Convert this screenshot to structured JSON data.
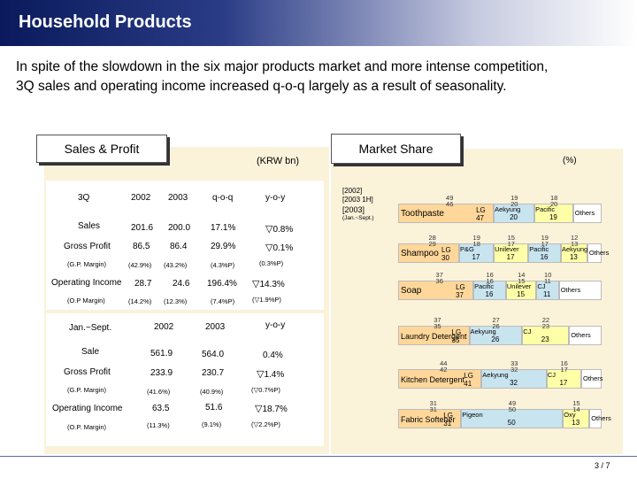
{
  "header": {
    "title": "Household Products"
  },
  "subtitle": {
    "line1": "In spite of the slowdown in the six major products market and more intense competition,",
    "line2": "3Q sales and operating income increased q-o-q largely as a result of seasonality."
  },
  "sales_profit": {
    "tab_label": "Sales & Profit",
    "unit": "(KRW bn)",
    "quarter_table": {
      "headers": [
        "3Q",
        "2002",
        "2003",
        "q-o-q",
        "y-o-y"
      ],
      "rows": [
        {
          "label": "Sales",
          "v2002": "201.6",
          "v2003": "200.0",
          "qoq": "17.1%",
          "yoy": "0.8%",
          "yoy_tri": "▽"
        },
        {
          "label": "Gross Profit",
          "v2002": "86.5",
          "v2003": "86.4",
          "qoq": "29.9%",
          "yoy": "0.1%",
          "yoy_tri": "▽"
        },
        {
          "label": "(G.P. Margin)",
          "v2002": "(42.9%)",
          "v2003": "(43.2%)",
          "qoq": "(4.3%P)",
          "yoy": "(0.3%P)",
          "yoy_tri": ""
        },
        {
          "label": "Operating Income",
          "v2002": "28.7",
          "v2003": "24.6",
          "qoq": "196.4%",
          "yoy": "14.3%",
          "yoy_tri": "▽"
        },
        {
          "label": "(O.P Margin)",
          "v2002": "(14.2%)",
          "v2003": "(12.3%)",
          "qoq": "(7.4%P)",
          "yoy": "(▽1.9%P)",
          "yoy_tri": ""
        }
      ]
    },
    "ytd_table": {
      "headers": [
        "Jan.~Sept.",
        "2002",
        "2003",
        "y-o-y"
      ],
      "rows": [
        {
          "label": "Sale",
          "v2002": "561.9",
          "v2003": "564.0",
          "yoy": "0.4%",
          "yoy_tri": ""
        },
        {
          "label": "Gross Profit",
          "v2002": "233.9",
          "v2003": "230.7",
          "yoy": "1.4%",
          "yoy_tri": "▽"
        },
        {
          "label": "(G.P. Margin)",
          "v2002": "(41.6%)",
          "v2003": "(40.9%)",
          "yoy": "(▽0.7%P)",
          "yoy_tri": ""
        },
        {
          "label": "Operating Income",
          "v2002": "63.5",
          "v2003": "51.6",
          "yoy": "18.7%",
          "yoy_tri": "▽"
        },
        {
          "label": "(O.P. Margin)",
          "v2002": "(11.3%)",
          "v2003": "(9.1%)",
          "yoy": "(▽2.2%P)",
          "yoy_tri": ""
        }
      ]
    }
  },
  "market_share": {
    "tab_label": "Market Share",
    "unit": "(%)",
    "legend": [
      "[2002]",
      "[2003 1H]",
      "[2003]",
      "(Jan.~Sept.)"
    ],
    "colors": {
      "lg": "#ffd79a",
      "competitor1": "#c8e4ef",
      "competitor2": "#ffffa8",
      "others": "#ffffff"
    },
    "chart_data": {
      "type": "stacked-bar",
      "categories": [
        "Toothpaste",
        "Shampoo",
        "Soap",
        "Laundry Detergent",
        "Kitchen Detergent",
        "Fabric Softener"
      ],
      "series_note": "values are % share for 2003 Jan.~Sept.; small figures above bars are 2002 and 2003 1H",
      "rows": [
        {
          "category": "Toothpaste",
          "lg_label": "LG",
          "lg_2003": 47,
          "lg_2002": 49,
          "lg_2003_1h": 46,
          "competitors": [
            {
              "name": "Aekyung",
              "v2003": 20,
              "v2002": 19,
              "v2003_1h": 20
            },
            {
              "name": "Pacific",
              "v2003": 19,
              "v2002": 18,
              "v2003_1h": 20
            }
          ],
          "others": "Others"
        },
        {
          "category": "Shampoo",
          "lg_label": "LG",
          "lg_2003": 30,
          "lg_2002": 28,
          "lg_2003_1h": 29,
          "competitors": [
            {
              "name": "P&G",
              "v2003": 17,
              "v2002": 19,
              "v2003_1h": 18
            },
            {
              "name": "Unilever",
              "v2003": 17,
              "v2002": 15,
              "v2003_1h": 17
            },
            {
              "name": "Pacific",
              "v2003": 16,
              "v2002": 19,
              "v2003_1h": 17
            },
            {
              "name": "Aekyung",
              "v2003": 13,
              "v2002": 12,
              "v2003_1h": 13
            }
          ],
          "others": "Others"
        },
        {
          "category": "Soap",
          "lg_label": "LG",
          "lg_2003": 37,
          "lg_2002": 37,
          "lg_2003_1h": 36,
          "competitors": [
            {
              "name": "Pacific",
              "v2003": 16,
              "v2002": 16,
              "v2003_1h": 16
            },
            {
              "name": "Unilever",
              "v2003": 15,
              "v2002": 14,
              "v2003_1h": 15
            },
            {
              "name": "CJ",
              "v2003": 11,
              "v2002": 10,
              "v2003_1h": 11
            }
          ],
          "others": "Others"
        },
        {
          "category": "Laundry Detergent",
          "lg_label": "LG",
          "lg_2003": 35,
          "lg_2002": 37,
          "lg_2003_1h": 35,
          "competitors": [
            {
              "name": "Aekyung",
              "v2003": 26,
              "v2002": 27,
              "v2003_1h": 26
            },
            {
              "name": "CJ",
              "v2003": 23,
              "v2002": 22,
              "v2003_1h": 23
            }
          ],
          "others": "Others"
        },
        {
          "category": "Kitchen Detergent",
          "lg_label": "LG",
          "lg_2003": 41,
          "lg_2002": 44,
          "lg_2003_1h": 42,
          "competitors": [
            {
              "name": "Aekyung",
              "v2003": 32,
              "v2002": 33,
              "v2003_1h": 32
            },
            {
              "name": "CJ",
              "v2003": 17,
              "v2002": 16,
              "v2003_1h": 17
            }
          ],
          "others": "Others"
        },
        {
          "category": "Fabric Softener",
          "lg_label": "LG",
          "lg_2003": 31,
          "lg_2002": 31,
          "lg_2003_1h": 31,
          "competitors": [
            {
              "name": "Pigeon",
              "v2003": 50,
              "v2002": 49,
              "v2003_1h": 50
            },
            {
              "name": "Oxy",
              "v2003": 13,
              "v2002": 15,
              "v2003_1h": 14
            }
          ],
          "others": "Others"
        }
      ]
    }
  },
  "footer": {
    "page": "3 / 7"
  }
}
